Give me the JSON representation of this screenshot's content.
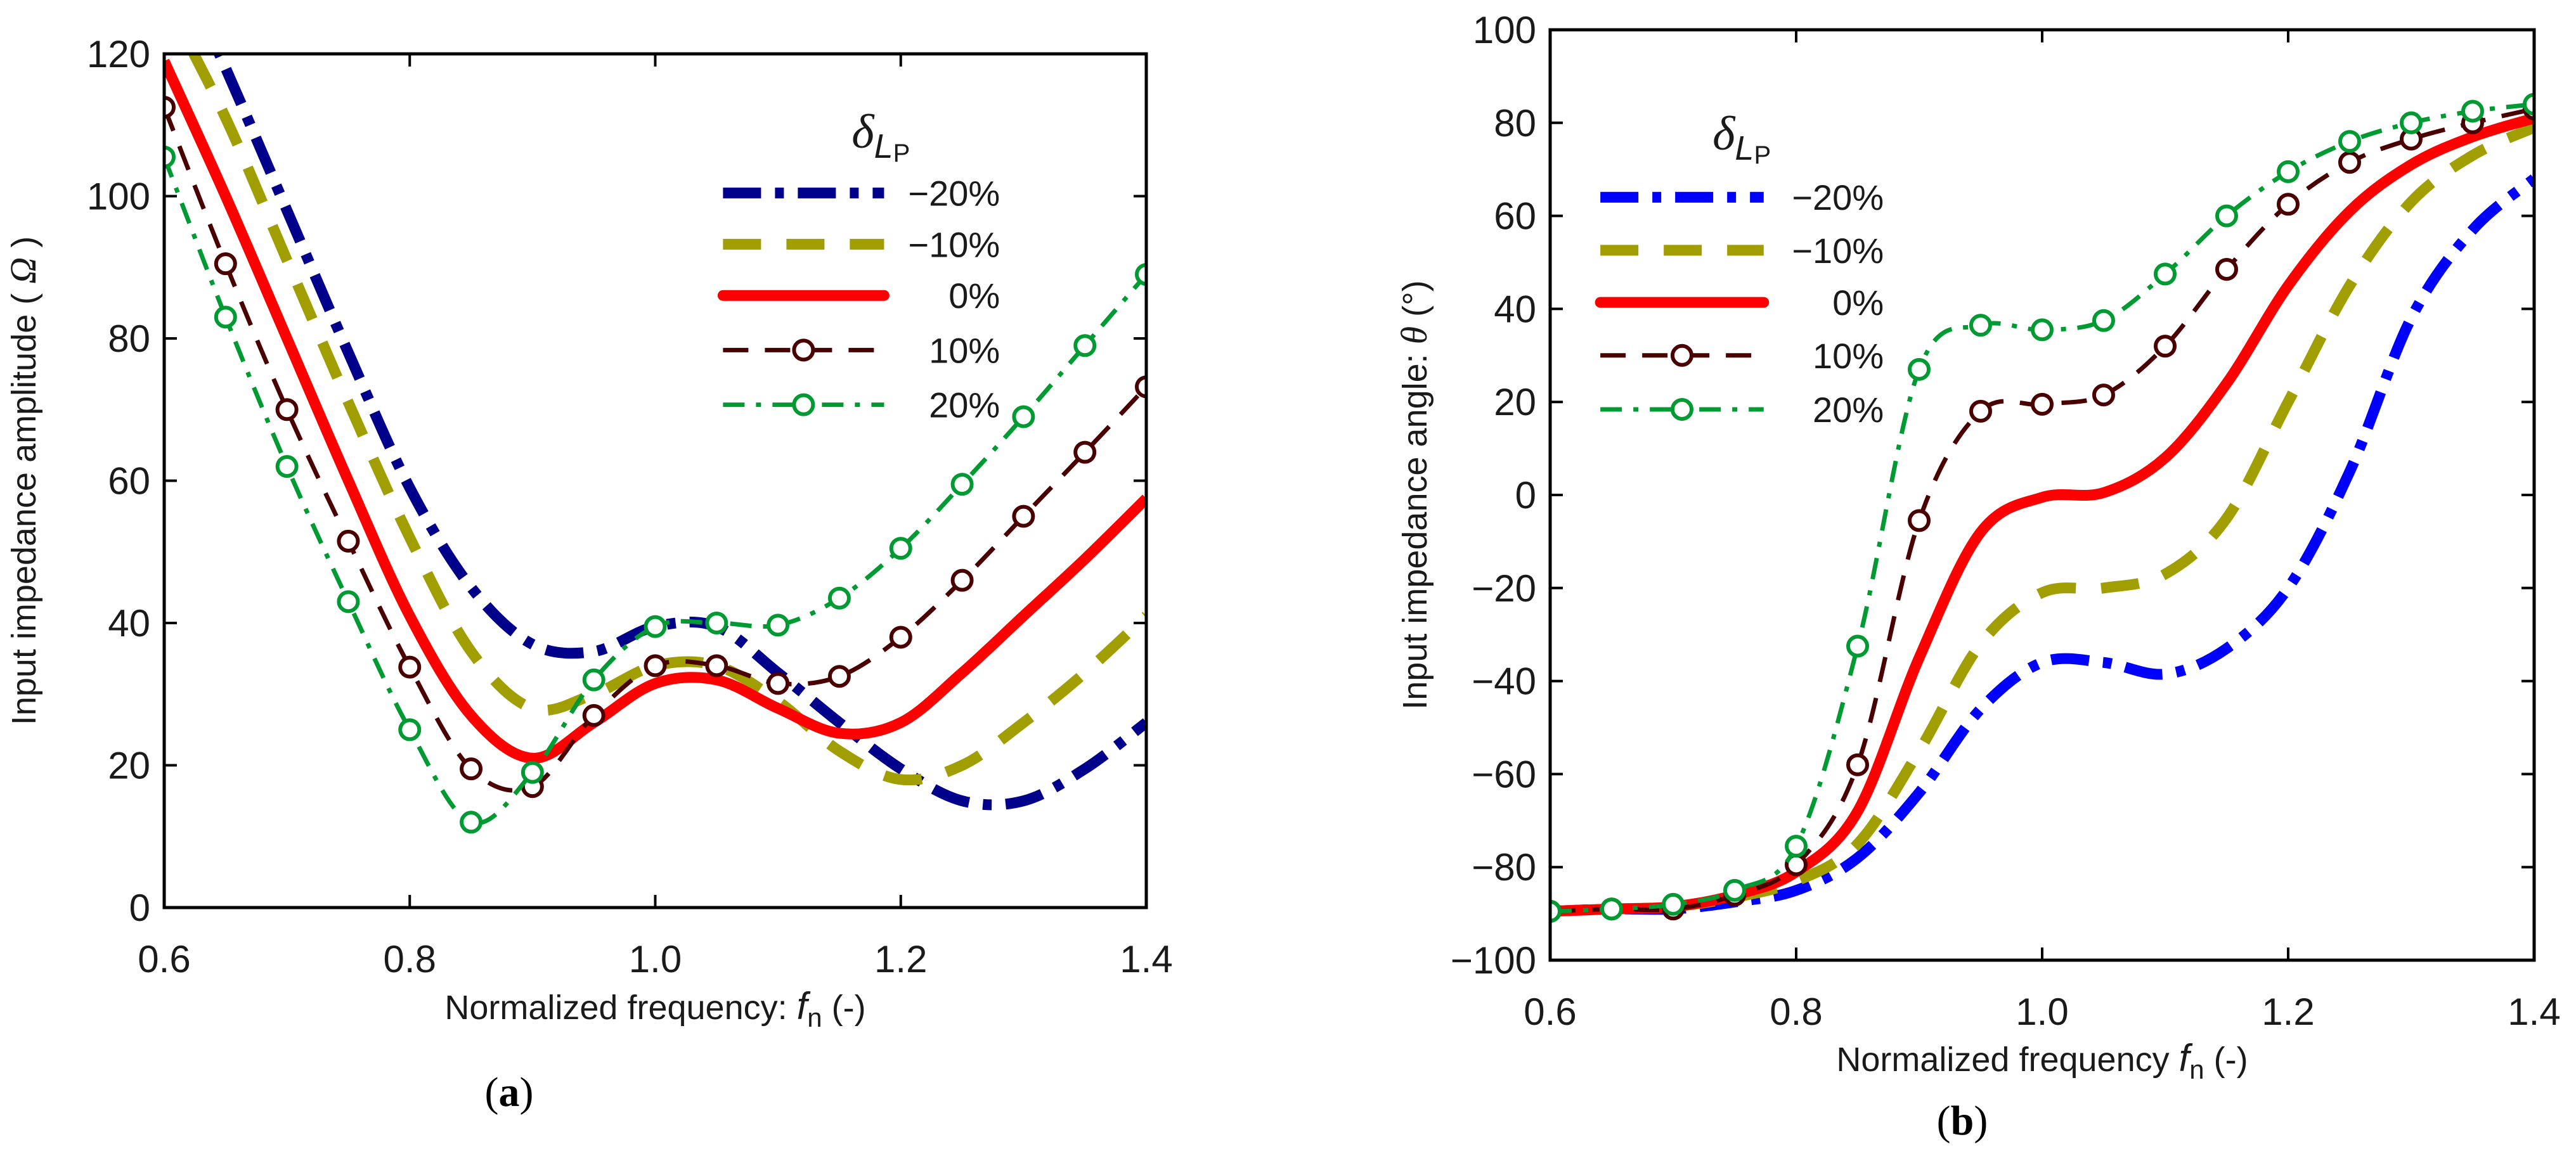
{
  "chart_data": [
    {
      "type": "line",
      "panel_label": "a",
      "title": "",
      "xlabel": {
        "prefix": "Normalized frequency: ",
        "var": "f",
        "sub": "n",
        "suffix": " (-)"
      },
      "ylabel": {
        "prefix": "Input impedance amplitude ( ",
        "var": "Ω",
        "suffix": " )"
      },
      "xlim": [
        0.6,
        1.4
      ],
      "ylim": [
        0,
        120
      ],
      "xticks": [
        0.6,
        0.8,
        1.0,
        1.2,
        1.4
      ],
      "xtick_labels": [
        "0.6",
        "0.8",
        "1.0",
        "1.2",
        "1.4"
      ],
      "yticks": [
        0,
        20,
        40,
        60,
        80,
        100,
        120
      ],
      "ytick_labels": [
        "0",
        "20",
        "40",
        "60",
        "80",
        "100",
        "120"
      ],
      "grid": false,
      "legend_placement": "top-right",
      "legend_title": {
        "symbol": "δ",
        "sub_italic": "L",
        "sub_upright": "P"
      },
      "x": [
        0.6,
        0.65,
        0.7,
        0.75,
        0.8,
        0.85,
        0.9,
        0.95,
        1.0,
        1.05,
        1.1,
        1.15,
        1.2,
        1.25,
        1.3,
        1.35,
        1.4
      ],
      "series": [
        {
          "name": "−20%",
          "color": "#00008B",
          "style": "dashdot-thick",
          "markers": false,
          "values": [
            137,
            118,
            98,
            78,
            59,
            45,
            37,
            36,
            39.5,
            39.5,
            33,
            26,
            19.5,
            15,
            15,
            19.5,
            26
          ]
        },
        {
          "name": "−10%",
          "color": "#A09E00",
          "style": "dash-thick",
          "markers": false,
          "values": [
            128,
            111,
            91,
            71,
            52,
            36,
            28,
            30,
            34,
            34,
            29,
            22,
            18,
            20,
            26,
            33,
            41
          ]
        },
        {
          "name": "0%",
          "color": "#FF0000",
          "style": "solid-thick",
          "markers": false,
          "values": [
            119,
            100,
            80,
            60,
            41,
            27,
            21,
            26,
            31.5,
            32,
            28,
            24.5,
            26,
            33,
            41,
            49,
            57.5
          ]
        },
        {
          "name": "10%",
          "color": "#4A0000",
          "style": "dash-thin",
          "markers": true,
          "values": [
            112.5,
            90.5,
            70,
            51.5,
            33.8,
            19.5,
            17,
            27,
            34,
            34,
            31.5,
            32.5,
            38,
            46,
            55,
            64,
            73.2
          ]
        },
        {
          "name": "20%",
          "color": "#009A33",
          "style": "dashdot-thin",
          "markers": true,
          "values": [
            105.5,
            83,
            62,
            43,
            25,
            12,
            19,
            32,
            39.5,
            40,
            39.7,
            43.5,
            50.5,
            59.5,
            69,
            79,
            89
          ]
        }
      ]
    },
    {
      "type": "line",
      "panel_label": "b",
      "title": "",
      "xlabel": {
        "prefix": "Normalized frequency ",
        "var": "f",
        "sub": "n",
        "suffix": " (-)"
      },
      "ylabel": {
        "prefix": "Input impedance angle:  ",
        "var": "θ",
        "suffix": " (°)"
      },
      "xlim": [
        0.6,
        1.4
      ],
      "ylim": [
        -100,
        100
      ],
      "xticks": [
        0.6,
        0.8,
        1.0,
        1.2,
        1.4
      ],
      "xtick_labels": [
        "0.6",
        "0.8",
        "1.0",
        "1.2",
        "1.4"
      ],
      "yticks": [
        -100,
        -80,
        -60,
        -40,
        -20,
        0,
        20,
        40,
        60,
        80,
        100
      ],
      "ytick_labels": [
        "−100",
        "−80",
        "−60",
        "−40",
        "−20",
        "0",
        "20",
        "40",
        "60",
        "80",
        "100"
      ],
      "grid": false,
      "legend_placement": "top-left",
      "legend_title": {
        "symbol": "δ",
        "sub_italic": "L",
        "sub_upright": "P"
      },
      "x": [
        0.6,
        0.65,
        0.7,
        0.75,
        0.8,
        0.85,
        0.9,
        0.95,
        1.0,
        1.05,
        1.1,
        1.15,
        1.2,
        1.25,
        1.3,
        1.35,
        1.4
      ],
      "series": [
        {
          "name": "−20%",
          "color": "#0000FF",
          "style": "dashdot-thick",
          "markers": false,
          "values": [
            -89.5,
            -89,
            -89,
            -87.5,
            -85,
            -78,
            -64,
            -46,
            -36,
            -36,
            -38.5,
            -33,
            -20,
            5,
            38,
            57,
            68
          ]
        },
        {
          "name": "−10%",
          "color": "#A09E00",
          "style": "dash-thick",
          "markers": false,
          "values": [
            -89.5,
            -89,
            -88.5,
            -86.5,
            -83,
            -75,
            -55,
            -32,
            -21,
            -20,
            -17,
            -5,
            20,
            45,
            63,
            73,
            79
          ]
        },
        {
          "name": "0%",
          "color": "#FF0000",
          "style": "solid-thick",
          "markers": false,
          "values": [
            -89.5,
            -89,
            -88.5,
            -86,
            -81,
            -68,
            -35,
            -8,
            -0.5,
            0.5,
            8,
            24,
            45,
            61,
            71,
            77,
            81
          ]
        },
        {
          "name": "10%",
          "color": "#4A0000",
          "style": "dash-thin",
          "markers": true,
          "values": [
            -89.5,
            -89,
            -89,
            -86,
            -79.5,
            -58,
            -5.5,
            18,
            19.5,
            21.5,
            32,
            48.5,
            62.5,
            71.5,
            76.5,
            80,
            83
          ]
        },
        {
          "name": "20%",
          "color": "#009A33",
          "style": "dashdot-thin",
          "markers": true,
          "values": [
            -89.5,
            -89,
            -88,
            -85,
            -75.5,
            -32.5,
            27,
            36.5,
            35.5,
            37.5,
            47.5,
            60,
            69.5,
            76,
            80,
            82.5,
            84
          ]
        }
      ]
    }
  ]
}
